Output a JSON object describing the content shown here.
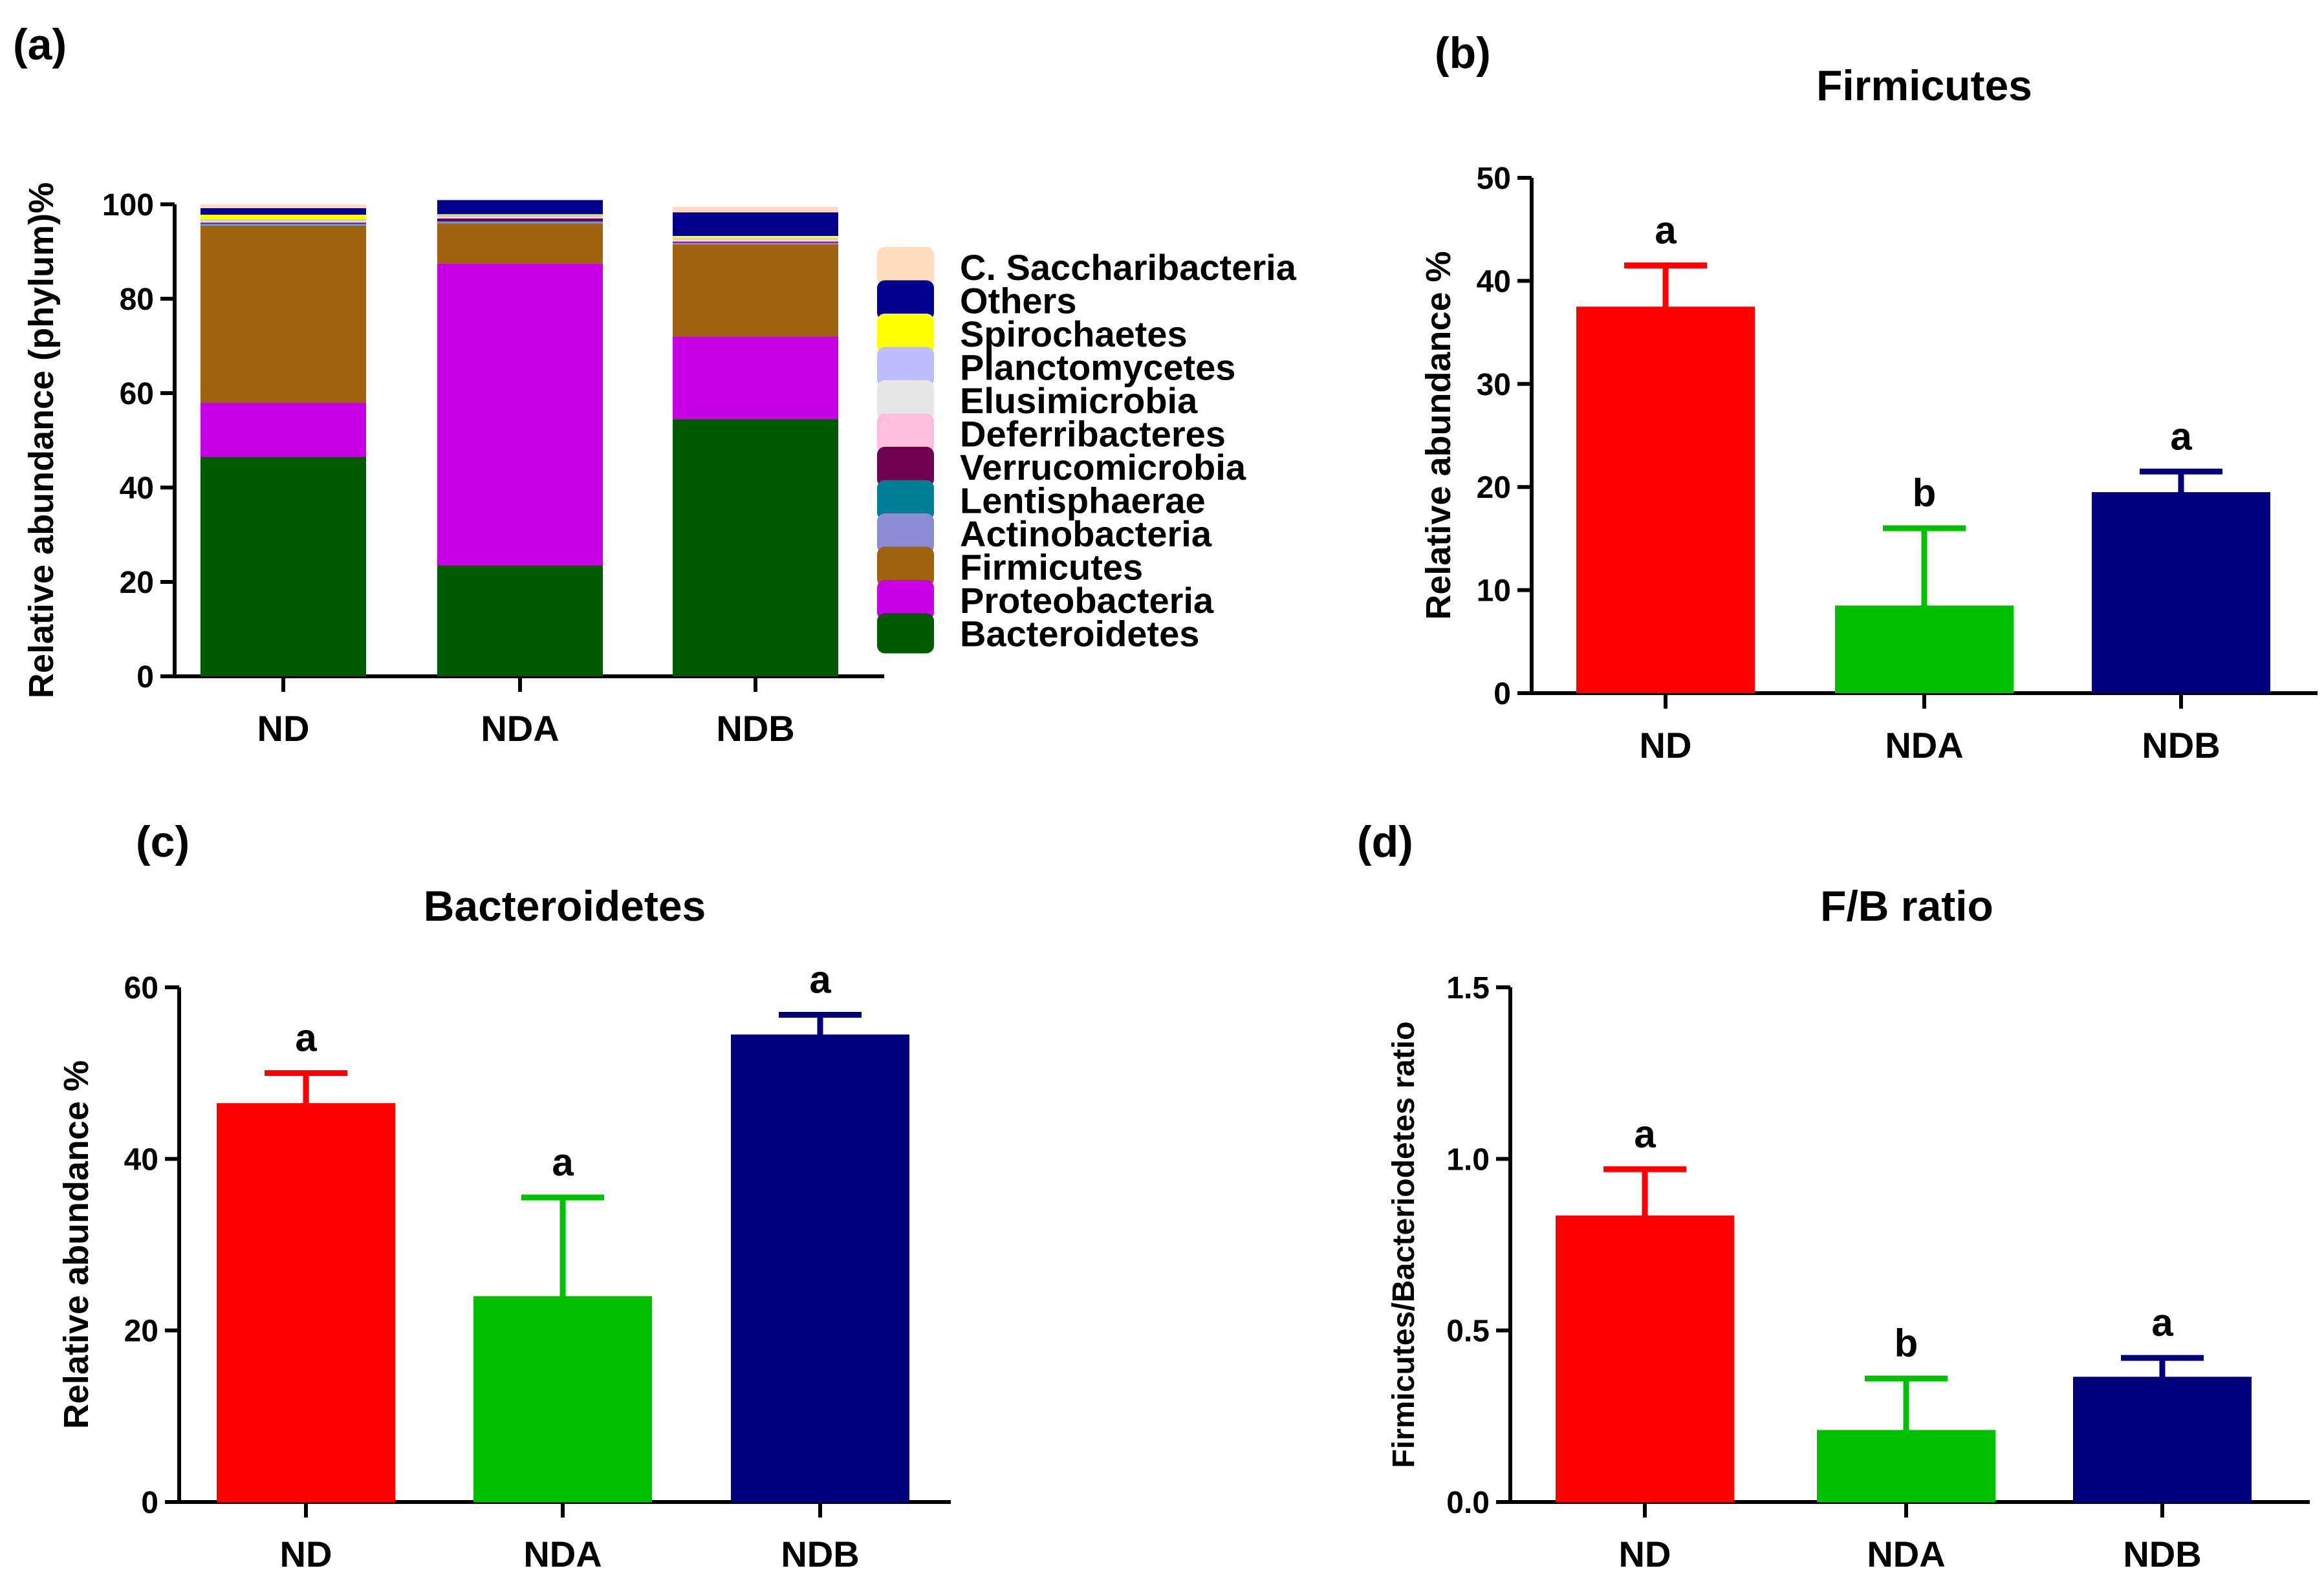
{
  "chart_data": [
    {
      "panel": "(a)",
      "type": "bar",
      "stacked": true,
      "title": "",
      "xlabel": "",
      "ylabel": "Relative abundance (phylum)%",
      "ylim": [
        0,
        100
      ],
      "yticks": [
        "0",
        "20",
        "40",
        "60",
        "80",
        "100"
      ],
      "categories": [
        "ND",
        "NDA",
        "NDB"
      ],
      "series": [
        {
          "name": "Bacteroidetes",
          "color": "#005A00",
          "values": [
            46.5,
            23.5,
            54.5
          ]
        },
        {
          "name": "Proteobacteria",
          "color": "#C800E6",
          "values": [
            11.5,
            64.0,
            17.5
          ]
        },
        {
          "name": "Firmicutes",
          "color": "#A0620E",
          "values": [
            37.5,
            8.5,
            19.5
          ]
        },
        {
          "name": "Actinobacteria",
          "color": "#8C8CD2",
          "values": [
            0.3,
            0.3,
            0.3
          ]
        },
        {
          "name": "Lentisphaerae",
          "color": "#007D96",
          "values": [
            0.1,
            0.1,
            0.1
          ]
        },
        {
          "name": "Verrucomicrobia",
          "color": "#6E0050",
          "values": [
            0.2,
            0.6,
            0.2
          ]
        },
        {
          "name": "Deferribacteres",
          "color": "#FFBEDC",
          "values": [
            0.2,
            0.2,
            0.2
          ]
        },
        {
          "name": "Elusimicrobia",
          "color": "#E6E6E6",
          "values": [
            0.2,
            0.2,
            0.2
          ]
        },
        {
          "name": "Planctomycetes",
          "color": "#BEBEFF",
          "values": [
            0.3,
            0.3,
            0.3
          ]
        },
        {
          "name": "Spirochaetes",
          "color": "#FFFF00",
          "values": [
            1.0,
            0.2,
            0.5
          ]
        },
        {
          "name": "Others",
          "color": "#00008C",
          "values": [
            1.4,
            3.0,
            5.0
          ]
        },
        {
          "name": "C. Saccharibacteria",
          "color": "#FFDCBE",
          "values": [
            0.8,
            0.1,
            1.2
          ]
        }
      ],
      "legend": [
        "C. Saccharibacteria",
        "Others",
        "Spirochaetes",
        "Planctomycetes",
        "Elusimicrobia",
        "Deferribacteres",
        "Verrucomicrobia",
        "Lentisphaerae",
        "Actinobacteria",
        "Firmicutes",
        "Proteobacteria",
        "Bacteroidetes"
      ],
      "legend_position": "right"
    },
    {
      "panel": "(b)",
      "type": "bar",
      "title": "Firmicutes",
      "xlabel": "",
      "ylabel": "Relative abundance %",
      "ylim": [
        0,
        50
      ],
      "yticks": [
        "0",
        "10",
        "20",
        "30",
        "40",
        "50"
      ],
      "categories": [
        "ND",
        "NDA",
        "NDB"
      ],
      "values": [
        37.5,
        8.5,
        19.5
      ],
      "errors": [
        4.0,
        7.5,
        2.0
      ],
      "colors": [
        "#FF0000",
        "#00C000",
        "#00007F"
      ],
      "labels": [
        "a",
        "b",
        "a"
      ]
    },
    {
      "panel": "(c)",
      "type": "bar",
      "title": "Bacteroidetes",
      "xlabel": "",
      "ylabel": "Relative abundance %",
      "ylim": [
        0,
        60
      ],
      "yticks": [
        "0",
        "20",
        "40",
        "60"
      ],
      "categories": [
        "ND",
        "NDA",
        "NDB"
      ],
      "values": [
        46.5,
        24.0,
        54.5
      ],
      "errors": [
        3.5,
        11.5,
        2.3
      ],
      "colors": [
        "#FF0000",
        "#00C000",
        "#00007F"
      ],
      "labels": [
        "a",
        "a",
        "a"
      ]
    },
    {
      "panel": "(d)",
      "type": "bar",
      "title": "F/B ratio",
      "xlabel": "",
      "ylabel": "Firmicutes/Bacteriodetes ratio",
      "ylim": [
        0,
        1.5
      ],
      "yticks": [
        "0.0",
        "0.5",
        "1.0",
        "1.5"
      ],
      "categories": [
        "ND",
        "NDA",
        "NDB"
      ],
      "values": [
        0.835,
        0.21,
        0.365
      ],
      "errors": [
        0.135,
        0.15,
        0.055
      ],
      "colors": [
        "#FF0000",
        "#00C000",
        "#00007F"
      ],
      "labels": [
        "a",
        "b",
        "a"
      ]
    }
  ]
}
